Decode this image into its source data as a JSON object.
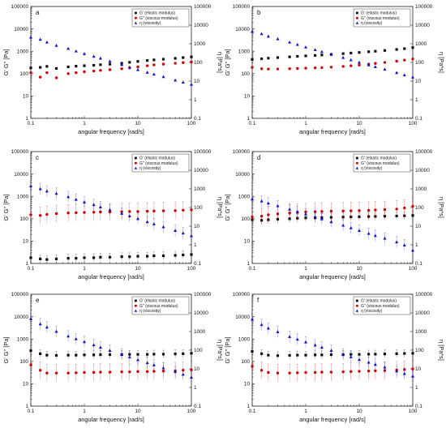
{
  "chart_data": [
    {
      "type": "scatter",
      "panel_label": "a",
      "xlabel": "angular frequency [rad/s]",
      "ylabel_left": "G' G'' [Pa]",
      "ylabel_right": "η [Pa*s]",
      "xscale": "log",
      "yscale": "log",
      "xlim": [
        0.1,
        100
      ],
      "ylim_left": [
        1,
        100000
      ],
      "ylim_right": [
        0.1,
        100000
      ],
      "x": [
        0.1,
        0.15,
        0.2,
        0.3,
        0.5,
        0.7,
        1,
        1.5,
        2,
        3,
        5,
        7,
        10,
        15,
        20,
        30,
        50,
        70,
        100
      ],
      "legend_position": "top-right",
      "series": [
        {
          "name": "G' (elastic modulus)",
          "axis": "left",
          "color": "#111111",
          "marker": "square",
          "values": [
            180,
            190,
            210,
            170,
            200,
            215,
            225,
            235,
            250,
            265,
            290,
            320,
            350,
            385,
            410,
            440,
            480,
            520,
            560
          ]
        },
        {
          "name": "G'' (viscous modulus)",
          "axis": "left",
          "color": "#d40000",
          "marker": "circle",
          "values": [
            110,
            70,
            110,
            65,
            100,
            110,
            120,
            130,
            140,
            150,
            165,
            180,
            200,
            225,
            245,
            265,
            290,
            310,
            330
          ]
        },
        {
          "name": "η (viscosity)",
          "axis": "right",
          "color": "#1010d0",
          "marker": "triangle",
          "values": [
            2200,
            1700,
            1200,
            800,
            550,
            400,
            290,
            210,
            165,
            115,
            75,
            55,
            40,
            29,
            23,
            17,
            11,
            8.5,
            6.5
          ]
        }
      ]
    },
    {
      "type": "scatter",
      "panel_label": "b",
      "xlabel": "angular frequency [rad/s]",
      "ylabel_left": "G' G'' [Pa]",
      "ylabel_right": "η [Pa*s]",
      "xscale": "log",
      "yscale": "log",
      "xlim": [
        0.1,
        100
      ],
      "ylim_left": [
        1,
        100000
      ],
      "ylim_right": [
        0.1,
        100000
      ],
      "x": [
        0.1,
        0.15,
        0.2,
        0.3,
        0.5,
        0.7,
        1,
        1.5,
        2,
        3,
        5,
        7,
        10,
        15,
        20,
        30,
        50,
        70,
        100
      ],
      "legend_position": "top-right",
      "series": [
        {
          "name": "G' (elastic modulus)",
          "axis": "left",
          "color": "#111111",
          "marker": "square",
          "values": [
            430,
            460,
            490,
            520,
            560,
            590,
            620,
            650,
            680,
            720,
            780,
            830,
            880,
            950,
            1000,
            1080,
            1200,
            1300,
            1450
          ]
        },
        {
          "name": "G'' (viscous modulus)",
          "axis": "left",
          "color": "#d40000",
          "marker": "circle",
          "values": [
            190,
            165,
            160,
            160,
            165,
            170,
            175,
            180,
            185,
            195,
            210,
            225,
            240,
            265,
            285,
            315,
            360,
            400,
            450
          ]
        },
        {
          "name": "η (viscosity)",
          "axis": "right",
          "color": "#1010d0",
          "marker": "triangle",
          "values": [
            4500,
            3400,
            2500,
            1800,
            1200,
            900,
            650,
            470,
            370,
            270,
            180,
            135,
            100,
            72,
            58,
            42,
            28,
            21,
            16
          ]
        }
      ]
    },
    {
      "type": "scatter",
      "panel_label": "c",
      "xlabel": "angular frequency [rad/s]",
      "ylabel_left": "G' G'' [Pa]",
      "ylabel_right": "η [Pa*s]",
      "xscale": "log",
      "yscale": "log",
      "xlim": [
        0.1,
        100
      ],
      "ylim_left": [
        1,
        100000
      ],
      "ylim_right": [
        0.1,
        100000
      ],
      "x": [
        0.1,
        0.15,
        0.2,
        0.3,
        0.5,
        0.7,
        1,
        1.5,
        2,
        3,
        5,
        7,
        10,
        15,
        20,
        30,
        50,
        70,
        100
      ],
      "legend_position": "top-right",
      "series": [
        {
          "name": "G' (elastic modulus)",
          "axis": "left",
          "color": "#111111",
          "marker": "square",
          "values": [
            1.8,
            1.6,
            1.5,
            1.6,
            1.7,
            1.7,
            1.8,
            1.8,
            1.9,
            1.9,
            2.0,
            2.0,
            2.1,
            2.1,
            2.2,
            2.2,
            2.3,
            2.4,
            2.5
          ]
        },
        {
          "name": "G'' (viscous modulus)",
          "axis": "left",
          "color": "#d40000",
          "marker": "circle",
          "values": [
            150,
            140,
            155,
            170,
            180,
            185,
            190,
            195,
            200,
            200,
            205,
            210,
            210,
            215,
            220,
            225,
            230,
            240,
            250
          ]
        },
        {
          "name": "η (viscosity)",
          "axis": "right",
          "color": "#1010d0",
          "marker": "triangle",
          "values": [
            1400,
            1000,
            750,
            560,
            370,
            270,
            195,
            140,
            105,
            75,
            48,
            35,
            25,
            17,
            13,
            9,
            5.8,
            4.2,
            3.0
          ]
        }
      ]
    },
    {
      "type": "scatter",
      "panel_label": "d",
      "xlabel": "angular frequency [rad/s]",
      "ylabel_left": "G' G'' [Pa]",
      "ylabel_right": "η [Pa*s]",
      "xscale": "log",
      "yscale": "log",
      "xlim": [
        0.1,
        100
      ],
      "ylim_left": [
        1,
        100000
      ],
      "ylim_right": [
        0.1,
        100000
      ],
      "x": [
        0.1,
        0.15,
        0.2,
        0.3,
        0.5,
        0.7,
        1,
        1.5,
        2,
        3,
        5,
        7,
        10,
        15,
        20,
        30,
        50,
        70,
        100
      ],
      "legend_position": "top-right",
      "series": [
        {
          "name": "G' (elastic modulus)",
          "axis": "left",
          "color": "#111111",
          "marker": "square",
          "values": [
            90,
            85,
            90,
            95,
            100,
            105,
            110,
            110,
            112,
            115,
            118,
            120,
            122,
            125,
            127,
            130,
            132,
            135,
            140
          ]
        },
        {
          "name": "G'' (viscous modulus)",
          "axis": "left",
          "color": "#d40000",
          "marker": "circle",
          "values": [
            120,
            130,
            150,
            165,
            180,
            190,
            200,
            205,
            210,
            215,
            220,
            225,
            230,
            235,
            245,
            255,
            270,
            300,
            360
          ]
        },
        {
          "name": "η (viscosity)",
          "axis": "right",
          "color": "#1010d0",
          "marker": "triangle",
          "values": [
            280,
            220,
            170,
            120,
            80,
            60,
            44,
            31,
            24,
            17,
            11,
            8,
            5.8,
            4.0,
            3.1,
            2.2,
            1.4,
            0.95,
            0.5
          ]
        }
      ]
    },
    {
      "type": "scatter",
      "panel_label": "e",
      "xlabel": "angular frequency [rad/s]",
      "ylabel_left": "G' G'' [Pa]",
      "ylabel_right": "η [Pa*s]",
      "xscale": "log",
      "yscale": "log",
      "xlim": [
        0.1,
        100
      ],
      "ylim_left": [
        1,
        100000
      ],
      "ylim_right": [
        0.1,
        100000
      ],
      "x": [
        0.1,
        0.15,
        0.2,
        0.3,
        0.5,
        0.7,
        1,
        1.5,
        2,
        3,
        5,
        7,
        10,
        15,
        20,
        30,
        50,
        70,
        100
      ],
      "legend_position": "top-right",
      "series": [
        {
          "name": "G' (elastic modulus)",
          "axis": "left",
          "color": "#111111",
          "marker": "square",
          "values": [
            300,
            220,
            190,
            185,
            190,
            190,
            195,
            195,
            200,
            200,
            200,
            205,
            205,
            205,
            210,
            210,
            215,
            220,
            230
          ]
        },
        {
          "name": "G'' (viscous modulus)",
          "axis": "left",
          "color": "#d40000",
          "marker": "circle",
          "values": [
            70,
            40,
            30,
            30,
            30,
            31,
            32,
            32,
            33,
            33,
            34,
            34,
            35,
            35,
            36,
            37,
            38,
            40,
            42
          ]
        },
        {
          "name": "η (viscosity)",
          "axis": "right",
          "color": "#1010d0",
          "marker": "triangle",
          "values": [
            4800,
            2500,
            1700,
            1000,
            560,
            400,
            280,
            190,
            140,
            95,
            60,
            42,
            30,
            21,
            16,
            11,
            7,
            5,
            3.5
          ]
        }
      ]
    },
    {
      "type": "scatter",
      "panel_label": "f",
      "xlabel": "angular frequency [rad/s]",
      "ylabel_left": "G' G'' [Pa]",
      "ylabel_right": "η [Pa*s]",
      "xscale": "log",
      "yscale": "log",
      "xlim": [
        0.1,
        100
      ],
      "ylim_left": [
        1,
        100000
      ],
      "ylim_right": [
        0.1,
        100000
      ],
      "x": [
        0.1,
        0.15,
        0.2,
        0.3,
        0.5,
        0.7,
        1,
        1.5,
        2,
        3,
        5,
        7,
        10,
        15,
        20,
        30,
        50,
        70,
        100
      ],
      "legend_position": "top-right",
      "series": [
        {
          "name": "G' (elastic modulus)",
          "axis": "left",
          "color": "#111111",
          "marker": "square",
          "values": [
            280,
            220,
            190,
            180,
            185,
            190,
            190,
            195,
            195,
            200,
            200,
            205,
            205,
            210,
            210,
            215,
            220,
            225,
            230
          ]
        },
        {
          "name": "G'' (viscous modulus)",
          "axis": "left",
          "color": "#d40000",
          "marker": "circle",
          "values": [
            60,
            40,
            32,
            30,
            30,
            31,
            32,
            32,
            33,
            33,
            34,
            35,
            36,
            37,
            38,
            39,
            41,
            43,
            46
          ]
        },
        {
          "name": "η (viscosity)",
          "axis": "right",
          "color": "#1010d0",
          "marker": "triangle",
          "values": [
            4500,
            2300,
            1500,
            950,
            530,
            380,
            270,
            185,
            140,
            95,
            60,
            43,
            31,
            22,
            17,
            12,
            7.5,
            5.5,
            4
          ]
        }
      ]
    }
  ]
}
